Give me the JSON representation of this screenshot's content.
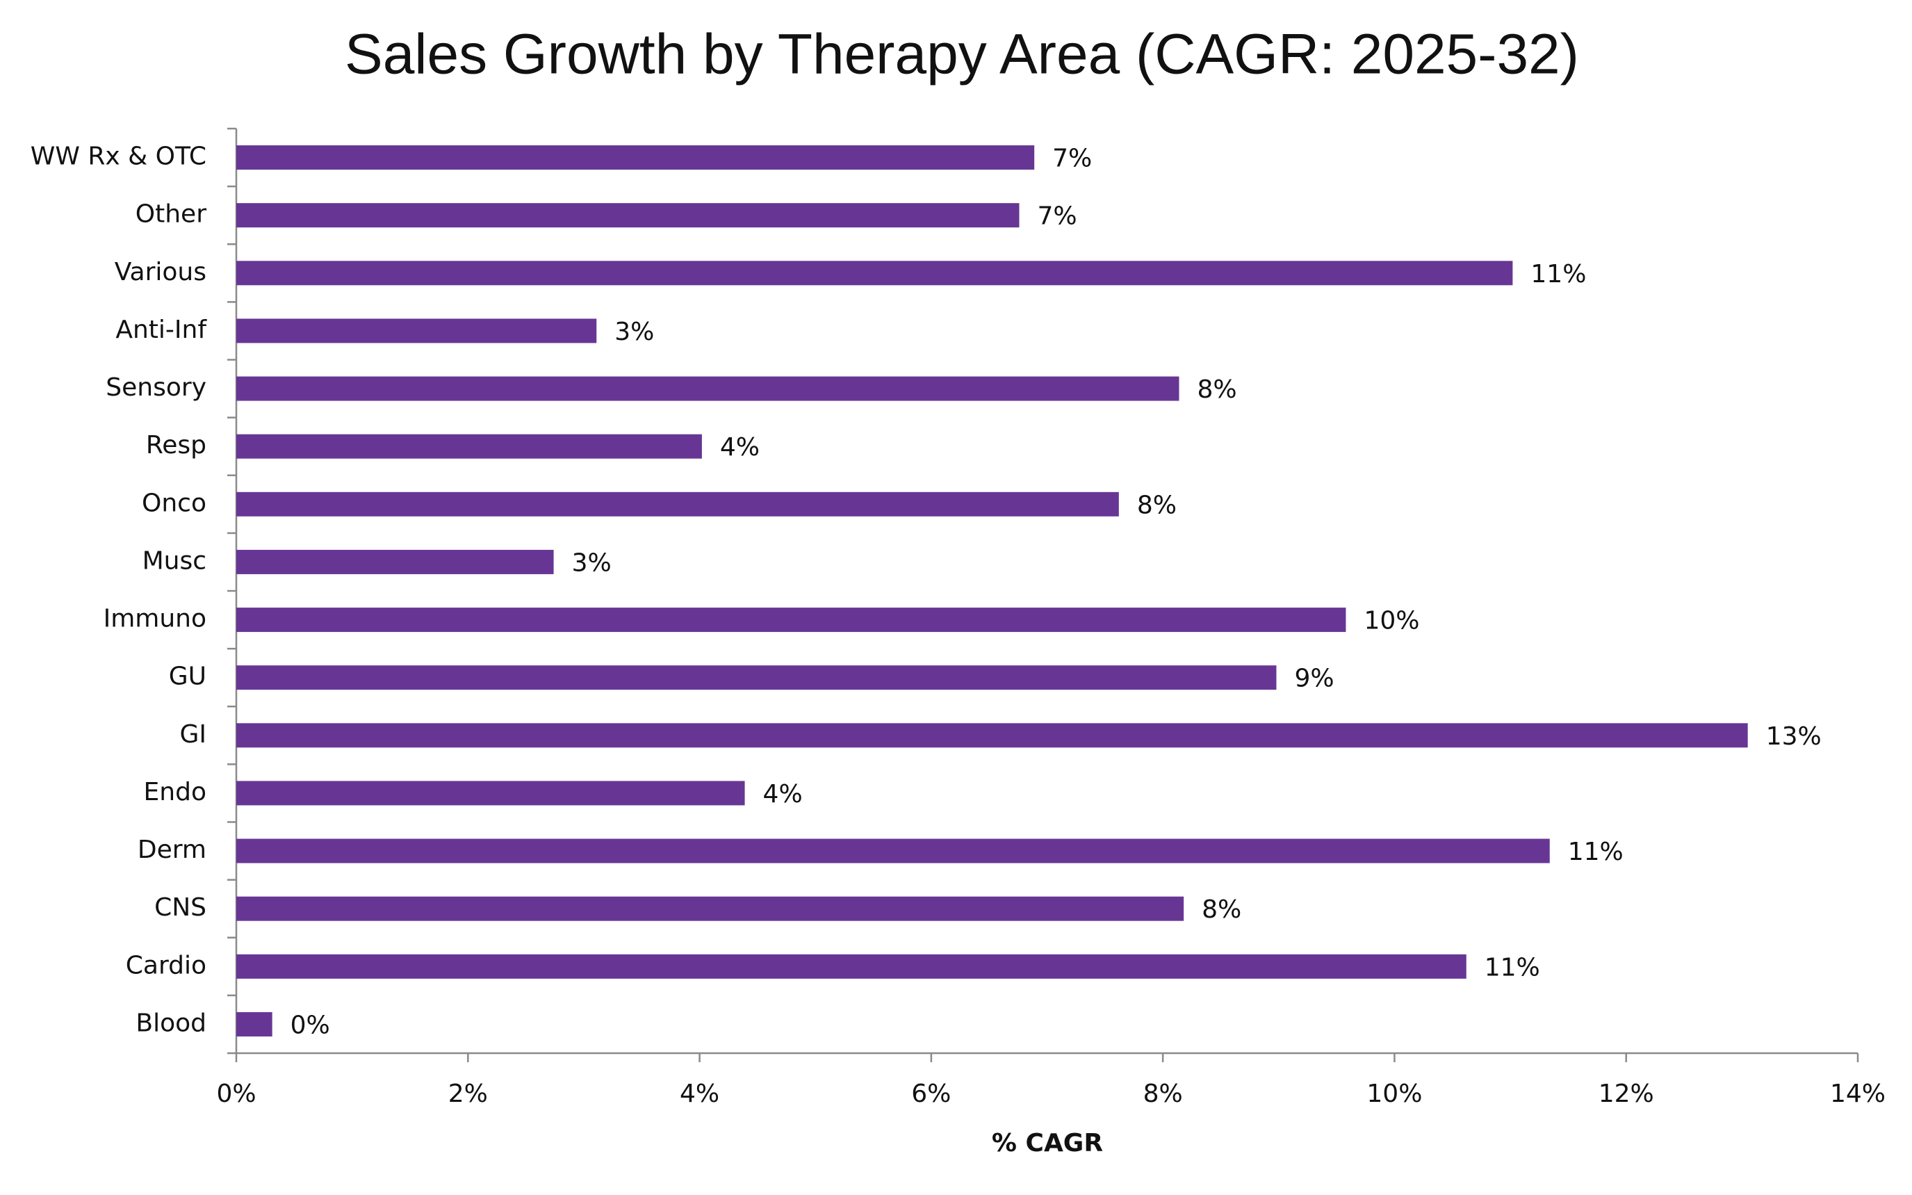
{
  "chart_data": {
    "type": "hbar",
    "title": "Sales Growth by Therapy Area (CAGR: 2025-32)",
    "x_label": "% CAGR",
    "categories": [
      "WW Rx & OTC",
      "Other",
      "Various",
      "Anti-Inf",
      "Sensory",
      "Resp",
      "Onco",
      "Musc",
      "Immuno",
      "GU",
      "GI",
      "Endo",
      "Derm",
      "CNS",
      "Cardio",
      "Blood"
    ],
    "values": [
      6.89,
      6.76,
      11.02,
      3.11,
      8.14,
      4.02,
      7.62,
      2.74,
      9.58,
      8.98,
      13.05,
      4.39,
      11.34,
      8.18,
      10.62,
      0.31
    ],
    "value_labels": [
      "7%",
      "7%",
      "11%",
      "3%",
      "8%",
      "4%",
      "8%",
      "3%",
      "10%",
      "9%",
      "13%",
      "4%",
      "11%",
      "8%",
      "11%",
      "0%"
    ],
    "color": "#673695",
    "xlim": [
      0,
      14
    ],
    "xticks": [
      {
        "value": 0,
        "label": "0%"
      },
      {
        "value": 2,
        "label": "2%"
      },
      {
        "value": 4,
        "label": "4%"
      },
      {
        "value": 6,
        "label": "6%"
      },
      {
        "value": 8,
        "label": "8%"
      },
      {
        "value": 10,
        "label": "10%"
      },
      {
        "value": 12,
        "label": "12%"
      },
      {
        "value": 14,
        "label": "14%"
      }
    ],
    "grid": false
  }
}
